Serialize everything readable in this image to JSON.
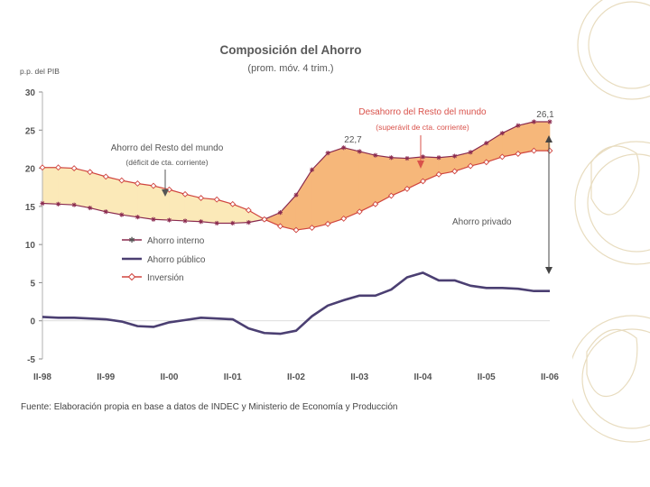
{
  "colors": {
    "ahorro_interno": "#8a2a4f",
    "ahorro_publico": "#4b3f72",
    "inversion": "#d0453f",
    "fill_resto_mundo": "#fbe9b8",
    "fill_desahorro": "#f6b77a",
    "annotation_red": "#d9514a",
    "watermark": "#e8dcc0"
  },
  "chart_data": {
    "type": "line",
    "title": "Composición del Ahorro",
    "subtitle": "(prom. móv. 4 trim.)",
    "ylabel": "p.p. del PIB",
    "ylim": [
      -5,
      30
    ],
    "yticks": [
      -5,
      0,
      5,
      10,
      15,
      20,
      25,
      30
    ],
    "xtick_labels": [
      "II-98",
      "II-99",
      "II-00",
      "II-01",
      "II-02",
      "II-03",
      "II-04",
      "II-05",
      "II-06"
    ],
    "x_count": 33,
    "series": [
      {
        "name": "Ahorro interno",
        "color_key": "ahorro_interno",
        "marker": "star",
        "values": [
          15.4,
          15.3,
          15.2,
          14.8,
          14.3,
          13.9,
          13.6,
          13.3,
          13.2,
          13.1,
          13.0,
          12.8,
          12.8,
          12.9,
          13.3,
          14.2,
          16.5,
          19.8,
          22.0,
          22.7,
          22.2,
          21.7,
          21.4,
          21.3,
          21.5,
          21.4,
          21.6,
          22.1,
          23.3,
          24.6,
          25.6,
          26.1,
          26.1
        ]
      },
      {
        "name": "Ahorro público",
        "color_key": "ahorro_publico",
        "marker": "none",
        "values": [
          0.5,
          0.4,
          0.4,
          0.3,
          0.2,
          -0.1,
          -0.7,
          -0.8,
          -0.2,
          0.1,
          0.4,
          0.3,
          0.2,
          -1.0,
          -1.6,
          -1.7,
          -1.3,
          0.6,
          2.0,
          2.7,
          3.3,
          3.3,
          4.1,
          5.7,
          6.3,
          5.3,
          5.3,
          4.6,
          4.3,
          4.3,
          4.2,
          3.9,
          3.9
        ]
      },
      {
        "name": "Inversión",
        "color_key": "inversion",
        "marker": "diamond",
        "values": [
          20.1,
          20.1,
          20.0,
          19.5,
          18.9,
          18.4,
          18.0,
          17.7,
          17.2,
          16.6,
          16.1,
          15.9,
          15.3,
          14.5,
          13.3,
          12.4,
          11.9,
          12.2,
          12.7,
          13.4,
          14.3,
          15.3,
          16.4,
          17.3,
          18.3,
          19.2,
          19.6,
          20.3,
          20.8,
          21.5,
          21.9,
          22.3,
          22.3
        ]
      }
    ],
    "annotations": {
      "peak_label": "22,7",
      "end_label": "26,1",
      "resto_mundo_title": "Ahorro del Resto del mundo",
      "resto_mundo_sub": "(déficit de cta. corriente)",
      "desahorro_title": "Desahorro del Resto del mundo",
      "desahorro_sub": "(superávit de cta. corriente)",
      "ahorro_privado": "Ahorro privado"
    },
    "legend_position": "middle-left"
  },
  "source_text": "Fuente: Elaboración propia en base a datos de INDEC y Ministerio de Economía y Producción"
}
